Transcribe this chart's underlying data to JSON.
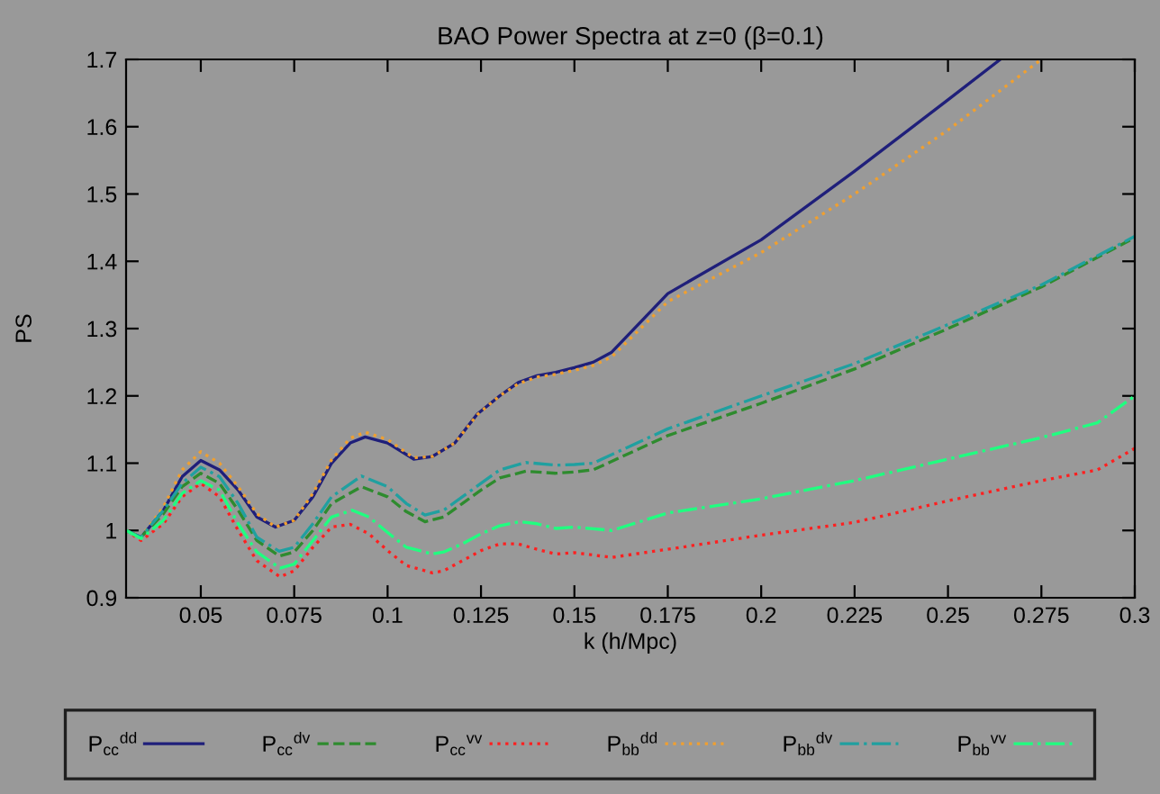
{
  "chart_data": {
    "type": "line",
    "title": "BAO Power Spectra at z=0 (β=0.1)",
    "xlabel": "k (h/Mpc)",
    "ylabel": "PS",
    "xlim": [
      0.03,
      0.3
    ],
    "ylim": [
      0.9,
      1.7
    ],
    "xticks": [
      0.05,
      0.075,
      0.1,
      0.125,
      0.15,
      0.175,
      0.2,
      0.225,
      0.25,
      0.275,
      0.3
    ],
    "yticks": [
      0.9,
      1,
      1.1,
      1.2,
      1.3,
      1.4,
      1.5,
      1.6,
      1.7
    ],
    "grid": false,
    "legend": "bottom",
    "marker": "none",
    "series": [
      {
        "name": "P$_{cc}$$^{dd}$",
        "color": "#1f1f7a",
        "line_style": "solid",
        "x": [
          0.03,
          0.034,
          0.04,
          0.045,
          0.05,
          0.055,
          0.06,
          0.065,
          0.07,
          0.075,
          0.08,
          0.085,
          0.09,
          0.094,
          0.1,
          0.107,
          0.112,
          0.118,
          0.124,
          0.13,
          0.135,
          0.14,
          0.145,
          0.15,
          0.155,
          0.16,
          0.175,
          0.2,
          0.225,
          0.25,
          0.264
        ],
        "values": [
          1.0,
          0.99,
          1.03,
          1.08,
          1.104,
          1.09,
          1.06,
          1.02,
          1.005,
          1.015,
          1.05,
          1.1,
          1.13,
          1.139,
          1.13,
          1.106,
          1.11,
          1.13,
          1.173,
          1.2,
          1.22,
          1.23,
          1.235,
          1.242,
          1.25,
          1.265,
          1.352,
          1.432,
          1.534,
          1.64,
          1.7
        ]
      },
      {
        "name": "P$_{cc}$$^{dv}$",
        "color": "#2e8b2e",
        "line_style": "dashed",
        "x": [
          0.03,
          0.034,
          0.04,
          0.045,
          0.05,
          0.055,
          0.06,
          0.065,
          0.071,
          0.075,
          0.08,
          0.085,
          0.093,
          0.1,
          0.105,
          0.11,
          0.115,
          0.12,
          0.125,
          0.13,
          0.137,
          0.145,
          0.15,
          0.155,
          0.175,
          0.2,
          0.225,
          0.25,
          0.275,
          0.3
        ],
        "values": [
          1.0,
          0.99,
          1.025,
          1.065,
          1.085,
          1.07,
          1.03,
          0.985,
          0.962,
          0.968,
          1.0,
          1.04,
          1.065,
          1.05,
          1.028,
          1.013,
          1.02,
          1.04,
          1.06,
          1.078,
          1.088,
          1.085,
          1.087,
          1.09,
          1.141,
          1.189,
          1.24,
          1.3,
          1.362,
          1.435
        ]
      },
      {
        "name": "P$_{cc}$$^{vv}$",
        "color": "#ff2020",
        "line_style": "dotted",
        "x": [
          0.03,
          0.034,
          0.04,
          0.045,
          0.05,
          0.055,
          0.06,
          0.065,
          0.0712,
          0.075,
          0.08,
          0.085,
          0.09,
          0.095,
          0.1,
          0.105,
          0.112,
          0.115,
          0.12,
          0.125,
          0.13,
          0.135,
          0.14,
          0.145,
          0.15,
          0.16,
          0.175,
          0.2,
          0.225,
          0.25,
          0.275,
          0.29,
          0.3
        ],
        "values": [
          1.0,
          0.985,
          1.01,
          1.05,
          1.07,
          1.05,
          1.0,
          0.955,
          0.931,
          0.94,
          0.975,
          1.005,
          1.009,
          0.995,
          0.97,
          0.948,
          0.937,
          0.94,
          0.955,
          0.97,
          0.98,
          0.98,
          0.972,
          0.965,
          0.967,
          0.96,
          0.972,
          0.993,
          1.012,
          1.044,
          1.074,
          1.09,
          1.122
        ]
      },
      {
        "name": "P$_{bb}$$^{dd}$",
        "color": "#f0a030",
        "line_style": "dotted",
        "x": [
          0.03,
          0.034,
          0.04,
          0.045,
          0.05,
          0.055,
          0.06,
          0.065,
          0.07,
          0.075,
          0.08,
          0.085,
          0.09,
          0.094,
          0.1,
          0.107,
          0.112,
          0.118,
          0.124,
          0.13,
          0.135,
          0.14,
          0.145,
          0.15,
          0.155,
          0.16,
          0.175,
          0.2,
          0.225,
          0.25,
          0.275
        ],
        "values": [
          1.0,
          0.99,
          1.035,
          1.09,
          1.117,
          1.1,
          1.065,
          1.025,
          1.005,
          1.015,
          1.055,
          1.105,
          1.137,
          1.146,
          1.135,
          1.108,
          1.11,
          1.13,
          1.172,
          1.2,
          1.218,
          1.228,
          1.232,
          1.238,
          1.245,
          1.258,
          1.34,
          1.413,
          1.5,
          1.595,
          1.7
        ]
      },
      {
        "name": "P$_{bb}$$^{dv}$",
        "color": "#20a0a0",
        "line_style": "dashdot",
        "x": [
          0.03,
          0.034,
          0.04,
          0.045,
          0.05,
          0.055,
          0.06,
          0.065,
          0.071,
          0.075,
          0.08,
          0.085,
          0.093,
          0.1,
          0.105,
          0.11,
          0.115,
          0.12,
          0.125,
          0.13,
          0.137,
          0.145,
          0.15,
          0.155,
          0.175,
          0.2,
          0.225,
          0.25,
          0.275,
          0.3
        ],
        "values": [
          1.0,
          0.99,
          1.03,
          1.07,
          1.094,
          1.08,
          1.04,
          0.99,
          0.969,
          0.975,
          1.01,
          1.05,
          1.081,
          1.065,
          1.04,
          1.023,
          1.03,
          1.05,
          1.07,
          1.09,
          1.101,
          1.097,
          1.098,
          1.1,
          1.151,
          1.2,
          1.248,
          1.306,
          1.365,
          1.437
        ]
      },
      {
        "name": "P$_{bb}$$^{vv}$",
        "color": "#20ff80",
        "line_style": "dashdot",
        "x": [
          0.03,
          0.034,
          0.04,
          0.045,
          0.05,
          0.055,
          0.06,
          0.065,
          0.0712,
          0.075,
          0.08,
          0.085,
          0.0905,
          0.095,
          0.1,
          0.105,
          0.112,
          0.115,
          0.12,
          0.125,
          0.13,
          0.1354,
          0.14,
          0.145,
          0.15,
          0.16,
          0.175,
          0.2,
          0.225,
          0.25,
          0.275,
          0.29,
          0.3
        ],
        "values": [
          1.0,
          0.988,
          1.015,
          1.055,
          1.074,
          1.06,
          1.01,
          0.968,
          0.944,
          0.95,
          0.985,
          1.02,
          1.03,
          1.02,
          0.997,
          0.975,
          0.965,
          0.968,
          0.98,
          0.995,
          1.007,
          1.013,
          1.01,
          1.003,
          1.005,
          1.0,
          1.026,
          1.047,
          1.074,
          1.106,
          1.138,
          1.16,
          1.2
        ]
      }
    ]
  }
}
